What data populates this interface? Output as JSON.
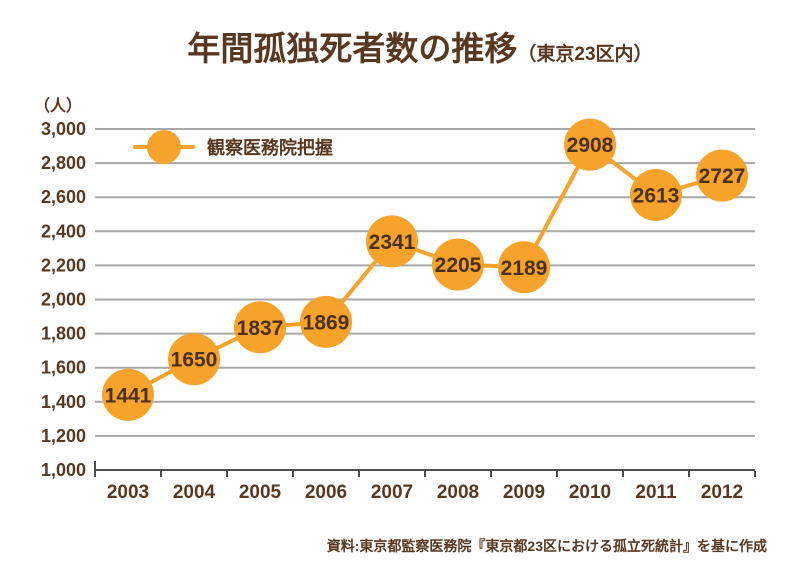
{
  "title": {
    "main": "年間孤独死者数の推移",
    "sub": "（東京23区内）"
  },
  "y_axis_unit": "（人）",
  "legend": {
    "label": "観察医務院把握"
  },
  "source_note": "資料:東京都監察医務院『東京都23区における孤立死統計』を基に作成",
  "colors": {
    "accent_orange": "#F6A22B",
    "text_brown": "#5A3820",
    "data_label_brown": "#4B3118",
    "gridline_gray": "#A8A8A8",
    "axis_gray": "#4D4D4D",
    "background": "#FFFFFF"
  },
  "chart_data": {
    "type": "line",
    "title": "年間孤独死者数の推移（東京23区内）",
    "categories": [
      "2003",
      "2004",
      "2005",
      "2006",
      "2007",
      "2008",
      "2009",
      "2010",
      "2011",
      "2012"
    ],
    "series": [
      {
        "name": "観察医務院把握",
        "values": [
          1441,
          1650,
          1837,
          1869,
          2341,
          2205,
          2189,
          2908,
          2613,
          2727
        ]
      }
    ],
    "xlabel": "",
    "ylabel": "（人）",
    "ylim": [
      1000,
      3000
    ],
    "ytick_step": 200,
    "y_tick_labels": [
      "1,000",
      "1,200",
      "1,400",
      "1,600",
      "1,800",
      "2,000",
      "2,200",
      "2,400",
      "2,600",
      "2,800",
      "3,000"
    ],
    "grid": "horizontal",
    "legend_position": "inside-top-left",
    "marker_style": "filled-circle-with-value-label",
    "value_labels": true
  }
}
